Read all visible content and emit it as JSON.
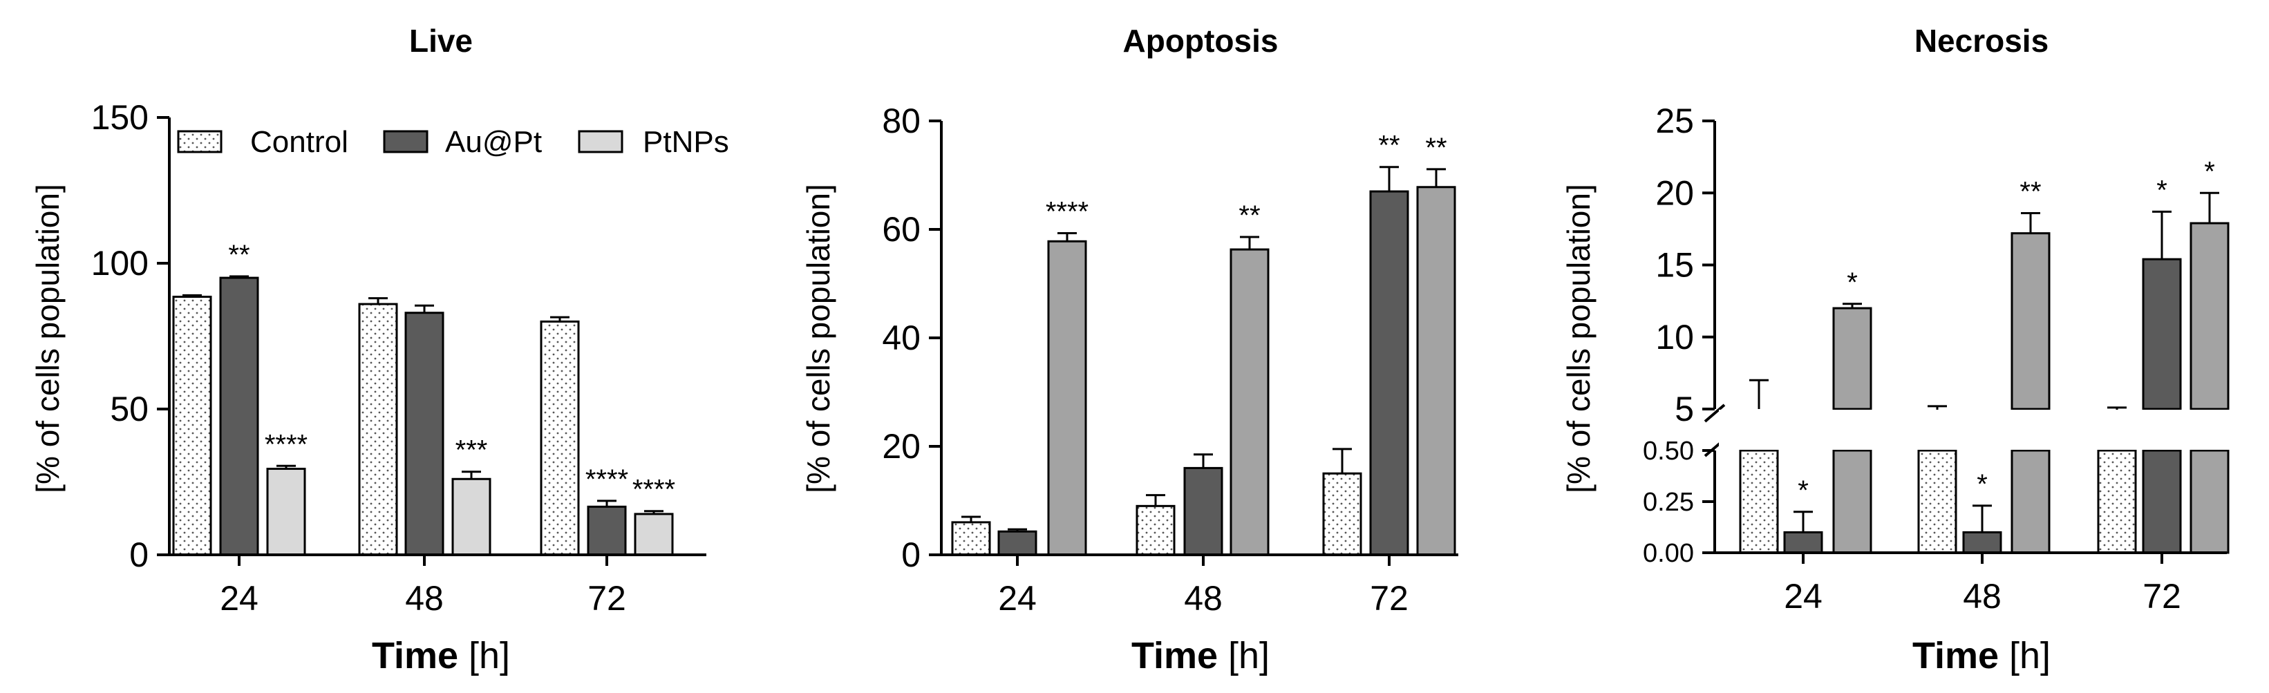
{
  "colors": {
    "control_fill": "#ffffff",
    "control_dots": "#555555",
    "aupt_fill": "#5b5b5b",
    "ptnps_fill_live": "#d9d9d9",
    "ptnps_fill": "#a3a3a3",
    "axis": "#000000"
  },
  "legend": {
    "items": [
      "Control",
      "Au@Pt",
      "PtNPs"
    ]
  },
  "chart_data": [
    {
      "type": "bar",
      "title": "Live",
      "xlabel": "Time",
      "xlabel_unit": "[h]",
      "ylabel": "[% of cells population]",
      "categories": [
        "24",
        "48",
        "72"
      ],
      "ylim": [
        0,
        150
      ],
      "yticks": [
        "0",
        "50",
        "100",
        "150"
      ],
      "legend_position": "top",
      "series": [
        {
          "name": "Control",
          "values": [
            88.5,
            86,
            80
          ],
          "errors": [
            0.5,
            2,
            1.5
          ],
          "stars": [
            "",
            "",
            ""
          ]
        },
        {
          "name": "Au@Pt",
          "values": [
            95,
            83,
            16.5
          ],
          "errors": [
            0.5,
            2.5,
            2
          ],
          "stars": [
            "**",
            "",
            "****"
          ]
        },
        {
          "name": "PtNPs",
          "values": [
            29.5,
            26,
            14
          ],
          "errors": [
            1,
            2.5,
            1
          ],
          "stars": [
            "****",
            "***",
            "****"
          ]
        }
      ]
    },
    {
      "type": "bar",
      "title": "Apoptosis",
      "xlabel": "Time",
      "xlabel_unit": "[h]",
      "ylabel": "[% of cells population]",
      "categories": [
        "24",
        "48",
        "72"
      ],
      "ylim": [
        0,
        80
      ],
      "yticks": [
        "0",
        "20",
        "40",
        "60",
        "80"
      ],
      "series": [
        {
          "name": "Control",
          "values": [
            6,
            9,
            15
          ],
          "errors": [
            1,
            2,
            4.5
          ],
          "stars": [
            "",
            "",
            ""
          ]
        },
        {
          "name": "Au@Pt",
          "values": [
            4.3,
            16,
            67
          ],
          "errors": [
            0.4,
            2.5,
            4.5
          ],
          "stars": [
            "",
            "",
            "**"
          ]
        },
        {
          "name": "PtNPs",
          "values": [
            57.8,
            56.3,
            67.8
          ],
          "errors": [
            1.5,
            2.3,
            3.3
          ],
          "stars": [
            "****",
            "**",
            "**"
          ]
        }
      ]
    },
    {
      "type": "bar",
      "title": "Necrosis",
      "xlabel": "Time",
      "xlabel_unit": "[h]",
      "ylabel": "[% of cells population]",
      "categories": [
        "24",
        "48",
        "72"
      ],
      "y_axis_break": true,
      "ylim_lower": [
        0,
        0.5
      ],
      "ylim_upper": [
        5,
        25
      ],
      "yticks_lower": [
        "0.00",
        "0.25",
        "0.50"
      ],
      "yticks_upper": [
        "5",
        "10",
        "15",
        "20",
        "25"
      ],
      "series": [
        {
          "name": "Control",
          "values": [
            5,
            4.5,
            4.8
          ],
          "errors": [
            2,
            0.7,
            0.3
          ],
          "stars": [
            "",
            "",
            ""
          ]
        },
        {
          "name": "Au@Pt",
          "values": [
            0.1,
            0.1,
            15.4
          ],
          "errors": [
            0.1,
            0.13,
            3.3
          ],
          "stars": [
            "*",
            "*",
            "*"
          ]
        },
        {
          "name": "PtNPs",
          "values": [
            12,
            17.2,
            17.9
          ],
          "errors": [
            0.3,
            1.4,
            2.1
          ],
          "stars": [
            "*",
            "**",
            "*"
          ]
        }
      ]
    }
  ]
}
